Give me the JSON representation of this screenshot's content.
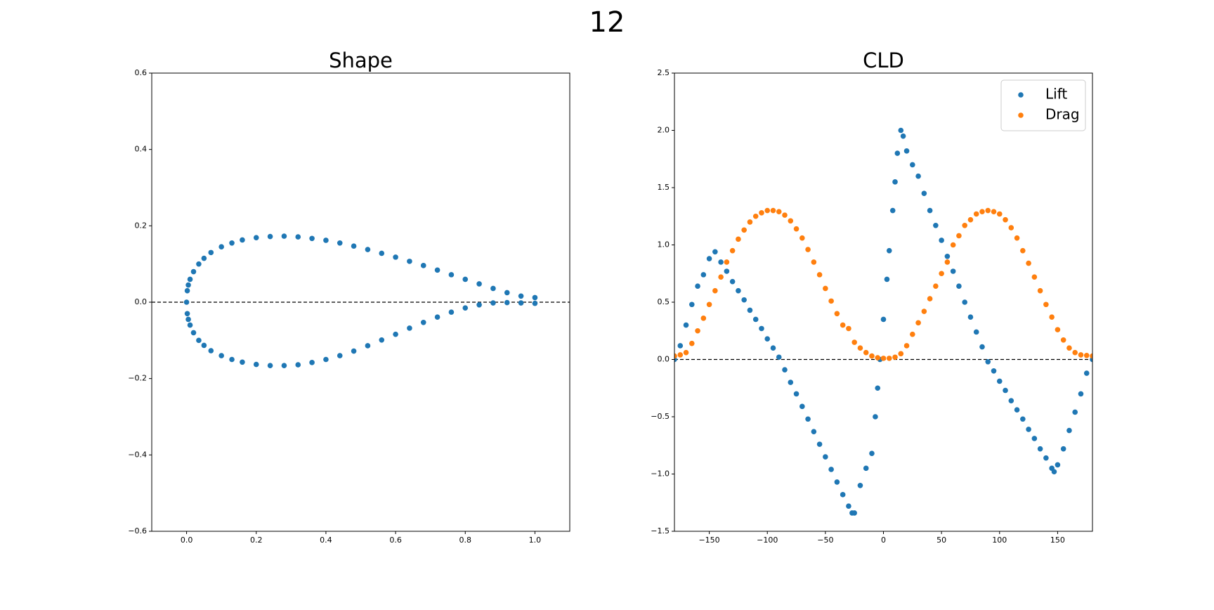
{
  "title": "12",
  "chart_data": [
    {
      "type": "scatter",
      "title": "Shape",
      "xlim": [
        -0.1,
        1.1
      ],
      "ylim": [
        -0.6,
        0.6
      ],
      "xticks": [
        {
          "value": 0,
          "label": "0.0"
        },
        0.2,
        0.4,
        0.6,
        0.8,
        {
          "value": 1,
          "label": "1.0"
        }
      ],
      "yticks": [
        {
          "value": -0.6,
          "label": "−0.6"
        },
        {
          "value": -0.4,
          "label": "−0.4"
        },
        {
          "value": -0.2,
          "label": "−0.2"
        },
        {
          "value": 0,
          "label": "0.0"
        },
        0.2,
        0.4,
        0.6
      ],
      "hline": 0,
      "series": [
        {
          "color": "#1f77b4",
          "x": [
            0,
            0.002,
            0.005,
            0.01,
            0.02,
            0.035,
            0.05,
            0.07,
            0.1,
            0.13,
            0.16,
            0.2,
            0.24,
            0.28,
            0.32,
            0.36,
            0.4,
            0.44,
            0.48,
            0.52,
            0.56,
            0.6,
            0.64,
            0.68,
            0.72,
            0.76,
            0.8,
            0.84,
            0.88,
            0.92,
            0.96,
            1.0,
            0.002,
            0.005,
            0.01,
            0.02,
            0.035,
            0.05,
            0.07,
            0.1,
            0.13,
            0.16,
            0.2,
            0.24,
            0.28,
            0.32,
            0.36,
            0.4,
            0.44,
            0.48,
            0.52,
            0.56,
            0.6,
            0.64,
            0.68,
            0.72,
            0.76,
            0.8,
            0.84,
            0.88,
            0.92,
            0.96,
            1.0
          ],
          "values": [
            0,
            0.03,
            0.045,
            0.06,
            0.08,
            0.1,
            0.115,
            0.13,
            0.145,
            0.155,
            0.163,
            0.169,
            0.172,
            0.173,
            0.171,
            0.167,
            0.162,
            0.155,
            0.147,
            0.138,
            0.128,
            0.118,
            0.107,
            0.096,
            0.084,
            0.072,
            0.06,
            0.048,
            0.036,
            0.025,
            0.016,
            0.012,
            -0.03,
            -0.045,
            -0.06,
            -0.08,
            -0.1,
            -0.113,
            -0.127,
            -0.14,
            -0.15,
            -0.157,
            -0.163,
            -0.166,
            -0.166,
            -0.164,
            -0.158,
            -0.15,
            -0.14,
            -0.128,
            -0.114,
            -0.099,
            -0.084,
            -0.068,
            -0.053,
            -0.039,
            -0.026,
            -0.015,
            -0.007,
            -0.002,
            -0.001,
            -0.002,
            -0.003
          ]
        }
      ]
    },
    {
      "type": "scatter",
      "title": "CLD",
      "xlim": [
        -180,
        180
      ],
      "ylim": [
        -1.5,
        2.5
      ],
      "xticks": [
        {
          "value": -150,
          "label": "−150"
        },
        {
          "value": -100,
          "label": "−100"
        },
        {
          "value": -50,
          "label": "−50"
        },
        0,
        50,
        100,
        150
      ],
      "yticks": [
        {
          "value": -1.5,
          "label": "−1.5"
        },
        {
          "value": -1,
          "label": "−1.0"
        },
        {
          "value": -0.5,
          "label": "−0.5"
        },
        {
          "value": 0,
          "label": "0.0"
        },
        0.5,
        {
          "value": 1,
          "label": "1.0"
        },
        1.5,
        {
          "value": 2,
          "label": "2.0"
        },
        2.5
      ],
      "hline": 0,
      "legend": "upper right",
      "series": [
        {
          "name": "Lift",
          "color": "#1f77b4",
          "x": [
            -180,
            -175,
            -170,
            -165,
            -160,
            -155,
            -150,
            -145,
            -140,
            -135,
            -130,
            -125,
            -120,
            -115,
            -110,
            -105,
            -100,
            -95,
            -90,
            -85,
            -80,
            -75,
            -70,
            -65,
            -60,
            -55,
            -50,
            -45,
            -40,
            -35,
            -30,
            -27,
            -25,
            -20,
            -15,
            -10,
            -7,
            -5,
            -3,
            0,
            3,
            5,
            8,
            10,
            12,
            15,
            17,
            20,
            25,
            30,
            35,
            40,
            45,
            50,
            55,
            60,
            65,
            70,
            75,
            80,
            85,
            90,
            95,
            100,
            105,
            110,
            115,
            120,
            125,
            130,
            135,
            140,
            145,
            147,
            150,
            155,
            160,
            165,
            170,
            175,
            180
          ],
          "values": [
            0,
            0.12,
            0.3,
            0.48,
            0.64,
            0.74,
            0.88,
            0.94,
            0.85,
            0.77,
            0.68,
            0.6,
            0.52,
            0.43,
            0.35,
            0.27,
            0.18,
            0.1,
            0.02,
            -0.09,
            -0.2,
            -0.3,
            -0.41,
            -0.52,
            -0.63,
            -0.74,
            -0.85,
            -0.96,
            -1.07,
            -1.18,
            -1.28,
            -1.34,
            -1.34,
            -1.1,
            -0.95,
            -0.82,
            -0.5,
            -0.25,
            0,
            0.35,
            0.7,
            0.95,
            1.3,
            1.55,
            1.8,
            2.0,
            1.95,
            1.82,
            1.7,
            1.6,
            1.45,
            1.3,
            1.17,
            1.04,
            0.9,
            0.77,
            0.64,
            0.5,
            0.37,
            0.24,
            0.11,
            -0.02,
            -0.1,
            -0.19,
            -0.27,
            -0.36,
            -0.44,
            -0.52,
            -0.61,
            -0.69,
            -0.78,
            -0.86,
            -0.95,
            -0.98,
            -0.92,
            -0.78,
            -0.62,
            -0.46,
            -0.3,
            -0.12,
            0
          ]
        },
        {
          "name": "Drag",
          "color": "#ff7f0e",
          "x": [
            -180,
            -175,
            -170,
            -165,
            -160,
            -155,
            -150,
            -145,
            -140,
            -135,
            -130,
            -125,
            -120,
            -115,
            -110,
            -105,
            -100,
            -95,
            -90,
            -85,
            -80,
            -75,
            -70,
            -65,
            -60,
            -55,
            -50,
            -45,
            -40,
            -35,
            -30,
            -25,
            -20,
            -15,
            -10,
            -5,
            0,
            5,
            10,
            15,
            20,
            25,
            30,
            35,
            40,
            45,
            50,
            55,
            60,
            65,
            70,
            75,
            80,
            85,
            90,
            95,
            100,
            105,
            110,
            115,
            120,
            125,
            130,
            135,
            140,
            145,
            150,
            155,
            160,
            165,
            170,
            175,
            180
          ],
          "values": [
            0.03,
            0.04,
            0.06,
            0.14,
            0.25,
            0.36,
            0.48,
            0.6,
            0.72,
            0.85,
            0.95,
            1.05,
            1.13,
            1.2,
            1.25,
            1.28,
            1.3,
            1.3,
            1.29,
            1.26,
            1.21,
            1.14,
            1.06,
            0.96,
            0.85,
            0.74,
            0.62,
            0.51,
            0.4,
            0.3,
            0.27,
            0.15,
            0.1,
            0.06,
            0.03,
            0.015,
            0.01,
            0.01,
            0.02,
            0.05,
            0.12,
            0.22,
            0.32,
            0.42,
            0.53,
            0.64,
            0.75,
            0.85,
            1.0,
            1.08,
            1.17,
            1.22,
            1.27,
            1.29,
            1.3,
            1.29,
            1.27,
            1.22,
            1.15,
            1.06,
            0.95,
            0.84,
            0.72,
            0.6,
            0.48,
            0.37,
            0.26,
            0.17,
            0.1,
            0.06,
            0.04,
            0.035,
            0.03
          ]
        }
      ]
    }
  ]
}
